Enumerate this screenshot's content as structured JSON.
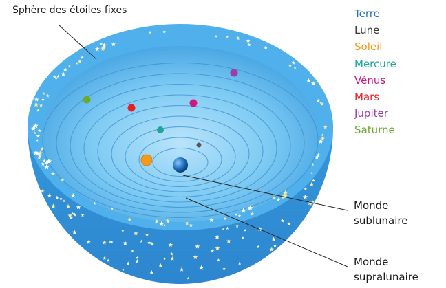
{
  "labels": {
    "sphere": "Sphère des étoiles fixes",
    "sublunar_line1": "Monde",
    "sublunar_line2": "sublunaire",
    "supralunar_line1": "Monde",
    "supralunar_line2": "supralunaire"
  },
  "legend": [
    {
      "name": "Terre",
      "color": "#1f74c2"
    },
    {
      "name": "Lune",
      "color": "#3a3a3a"
    },
    {
      "name": "Soleil",
      "color": "#f39a1e"
    },
    {
      "name": "Mercure",
      "color": "#1fa59a"
    },
    {
      "name": "Vénus",
      "color": "#d0177f"
    },
    {
      "name": "Mars",
      "color": "#e02228"
    },
    {
      "name": "Jupiter",
      "color": "#9b3fa8"
    },
    {
      "name": "Saturne",
      "color": "#6aaa2c"
    }
  ],
  "colors": {
    "outer": "#3a9ee0",
    "rim": "#5cb8ef",
    "inner": "#73c3f1",
    "ring_line": "#3c8fd0",
    "star": "#ffffff",
    "star_gold": "#f7e9a6"
  }
}
